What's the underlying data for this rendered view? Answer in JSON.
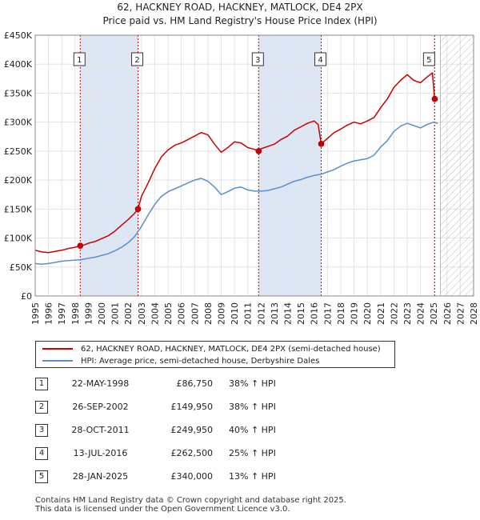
{
  "title_line1": "62, HACKNEY ROAD, HACKNEY, MATLOCK, DE4 2PX",
  "title_line2": "Price paid vs. HM Land Registry's House Price Index (HPI)",
  "legend": {
    "property_label": "62, HACKNEY ROAD, HACKNEY, MATLOCK, DE4 2PX (semi-detached house)",
    "hpi_label": "HPI: Average price, semi-detached house, Derbyshire Dales"
  },
  "colors": {
    "property": "#cc0000",
    "hpi": "#5b8fc9",
    "shade": "#dde6f5",
    "vline": "#cc0000",
    "grid": "#e3e3e3",
    "hatch": "#bbbbbb"
  },
  "sales": [
    {
      "num": "1",
      "date": "22-MAY-1998",
      "price": "£86,750",
      "hpi": "38% ↑ HPI"
    },
    {
      "num": "2",
      "date": "26-SEP-2002",
      "price": "£149,950",
      "hpi": "38% ↑ HPI"
    },
    {
      "num": "3",
      "date": "28-OCT-2011",
      "price": "£249,950",
      "hpi": "40% ↑ HPI"
    },
    {
      "num": "4",
      "date": "13-JUL-2016",
      "price": "£262,500",
      "hpi": "25% ↑ HPI"
    },
    {
      "num": "5",
      "date": "28-JAN-2025",
      "price": "£340,000",
      "hpi": "13% ↑ HPI"
    }
  ],
  "footer": {
    "line1": "Contains HM Land Registry data © Crown copyright and database right 2025.",
    "line2": "This data is licensed under the Open Government Licence v3.0."
  },
  "chart_data": {
    "type": "line",
    "title": "Price paid vs. HM Land Registry's House Price Index (HPI)",
    "xlim": [
      1995,
      2028
    ],
    "ylim": [
      0,
      450000
    ],
    "x_ticks": [
      1995,
      1996,
      1997,
      1998,
      1999,
      2000,
      2001,
      2002,
      2003,
      2004,
      2005,
      2006,
      2007,
      2008,
      2009,
      2010,
      2011,
      2012,
      2013,
      2014,
      2015,
      2016,
      2017,
      2018,
      2019,
      2020,
      2021,
      2022,
      2023,
      2024,
      2025,
      2026,
      2027,
      2028
    ],
    "y_ticks": [
      {
        "value": 0,
        "label": "£0"
      },
      {
        "value": 50000,
        "label": "£50K"
      },
      {
        "value": 100000,
        "label": "£100K"
      },
      {
        "value": 150000,
        "label": "£150K"
      },
      {
        "value": 200000,
        "label": "£200K"
      },
      {
        "value": 250000,
        "label": "£250K"
      },
      {
        "value": 300000,
        "label": "£300K"
      },
      {
        "value": 350000,
        "label": "£350K"
      },
      {
        "value": 400000,
        "label": "£400K"
      },
      {
        "value": 450000,
        "label": "£450K"
      }
    ],
    "shaded_ranges": [
      [
        1998.39,
        2002.74
      ],
      [
        2011.82,
        2016.53
      ]
    ],
    "forecast_from": 2025.5,
    "sale_points": [
      {
        "label": "1",
        "x": 1998.39,
        "y": 86750
      },
      {
        "label": "2",
        "x": 2002.74,
        "y": 149950
      },
      {
        "label": "3",
        "x": 2011.82,
        "y": 249950
      },
      {
        "label": "4",
        "x": 2016.53,
        "y": 262500
      },
      {
        "label": "5",
        "x": 2025.07,
        "y": 340000
      }
    ],
    "series": [
      {
        "name": "62, HACKNEY ROAD, HACKNEY, MATLOCK, DE4 2PX (semi-detached house)",
        "points": [
          [
            1995.0,
            79000
          ],
          [
            1995.5,
            76000
          ],
          [
            1996.0,
            75000
          ],
          [
            1996.5,
            77000
          ],
          [
            1997.0,
            79000
          ],
          [
            1997.5,
            82000
          ],
          [
            1998.0,
            84000
          ],
          [
            1998.39,
            86750
          ],
          [
            1998.7,
            88000
          ],
          [
            1999.0,
            91000
          ],
          [
            1999.5,
            94000
          ],
          [
            2000.0,
            99000
          ],
          [
            2000.5,
            104000
          ],
          [
            2001.0,
            112000
          ],
          [
            2001.5,
            122000
          ],
          [
            2002.0,
            132000
          ],
          [
            2002.5,
            143000
          ],
          [
            2002.74,
            149950
          ],
          [
            2003.0,
            172000
          ],
          [
            2003.5,
            195000
          ],
          [
            2004.0,
            220000
          ],
          [
            2004.5,
            240000
          ],
          [
            2005.0,
            252000
          ],
          [
            2005.5,
            260000
          ],
          [
            2006.0,
            264000
          ],
          [
            2006.5,
            270000
          ],
          [
            2007.0,
            276000
          ],
          [
            2007.5,
            282000
          ],
          [
            2008.0,
            278000
          ],
          [
            2008.5,
            262000
          ],
          [
            2009.0,
            248000
          ],
          [
            2009.5,
            256000
          ],
          [
            2010.0,
            266000
          ],
          [
            2010.5,
            264000
          ],
          [
            2011.0,
            256000
          ],
          [
            2011.5,
            253000
          ],
          [
            2011.82,
            249950
          ],
          [
            2012.0,
            254000
          ],
          [
            2012.5,
            258000
          ],
          [
            2013.0,
            262000
          ],
          [
            2013.5,
            270000
          ],
          [
            2014.0,
            276000
          ],
          [
            2014.5,
            286000
          ],
          [
            2015.0,
            292000
          ],
          [
            2015.5,
            298000
          ],
          [
            2016.0,
            302000
          ],
          [
            2016.3,
            296000
          ],
          [
            2016.53,
            262500
          ],
          [
            2017.0,
            272000
          ],
          [
            2017.5,
            282000
          ],
          [
            2018.0,
            288000
          ],
          [
            2018.5,
            295000
          ],
          [
            2019.0,
            300000
          ],
          [
            2019.5,
            297000
          ],
          [
            2020.0,
            302000
          ],
          [
            2020.5,
            308000
          ],
          [
            2021.0,
            325000
          ],
          [
            2021.5,
            340000
          ],
          [
            2022.0,
            360000
          ],
          [
            2022.5,
            372000
          ],
          [
            2023.0,
            382000
          ],
          [
            2023.5,
            372000
          ],
          [
            2024.0,
            368000
          ],
          [
            2024.5,
            378000
          ],
          [
            2024.9,
            385000
          ],
          [
            2025.07,
            340000
          ],
          [
            2025.3,
            338000
          ]
        ]
      },
      {
        "name": "HPI: Average price, semi-detached house, Derbyshire Dales",
        "points": [
          [
            1995.0,
            56000
          ],
          [
            1995.5,
            55000
          ],
          [
            1996.0,
            56000
          ],
          [
            1996.5,
            58000
          ],
          [
            1997.0,
            60000
          ],
          [
            1997.5,
            61000
          ],
          [
            1998.0,
            62000
          ],
          [
            1998.5,
            63000
          ],
          [
            1999.0,
            65000
          ],
          [
            1999.5,
            67000
          ],
          [
            2000.0,
            70000
          ],
          [
            2000.5,
            73000
          ],
          [
            2001.0,
            78000
          ],
          [
            2001.5,
            84000
          ],
          [
            2002.0,
            92000
          ],
          [
            2002.5,
            103000
          ],
          [
            2003.0,
            120000
          ],
          [
            2003.5,
            140000
          ],
          [
            2004.0,
            158000
          ],
          [
            2004.5,
            172000
          ],
          [
            2005.0,
            180000
          ],
          [
            2005.5,
            185000
          ],
          [
            2006.0,
            190000
          ],
          [
            2006.5,
            195000
          ],
          [
            2007.0,
            200000
          ],
          [
            2007.5,
            203000
          ],
          [
            2008.0,
            198000
          ],
          [
            2008.5,
            188000
          ],
          [
            2009.0,
            175000
          ],
          [
            2009.5,
            180000
          ],
          [
            2010.0,
            186000
          ],
          [
            2010.5,
            188000
          ],
          [
            2011.0,
            183000
          ],
          [
            2011.5,
            181000
          ],
          [
            2012.0,
            181000
          ],
          [
            2012.5,
            182000
          ],
          [
            2013.0,
            185000
          ],
          [
            2013.5,
            188000
          ],
          [
            2014.0,
            193000
          ],
          [
            2014.5,
            198000
          ],
          [
            2015.0,
            201000
          ],
          [
            2015.5,
            205000
          ],
          [
            2016.0,
            208000
          ],
          [
            2016.5,
            210000
          ],
          [
            2017.0,
            214000
          ],
          [
            2017.5,
            218000
          ],
          [
            2018.0,
            224000
          ],
          [
            2018.5,
            229000
          ],
          [
            2019.0,
            233000
          ],
          [
            2019.5,
            235000
          ],
          [
            2020.0,
            237000
          ],
          [
            2020.5,
            243000
          ],
          [
            2021.0,
            257000
          ],
          [
            2021.5,
            268000
          ],
          [
            2022.0,
            284000
          ],
          [
            2022.5,
            293000
          ],
          [
            2023.0,
            298000
          ],
          [
            2023.5,
            294000
          ],
          [
            2024.0,
            290000
          ],
          [
            2024.5,
            296000
          ],
          [
            2025.0,
            300000
          ],
          [
            2025.3,
            298000
          ]
        ]
      }
    ]
  }
}
